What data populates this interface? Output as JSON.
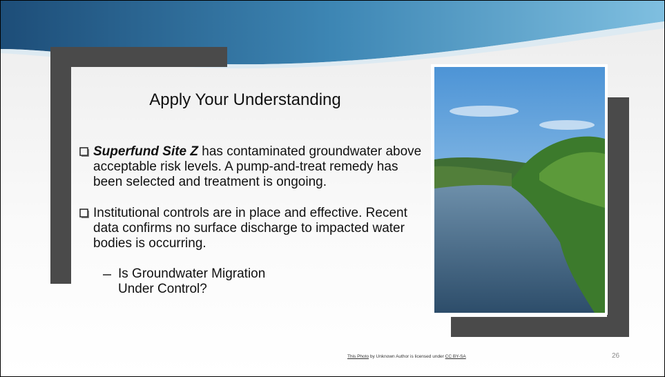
{
  "slide": {
    "title": "Apply Your Understanding",
    "bullets": [
      {
        "lead": "Superfund Site Z",
        "text": " has contaminated groundwater above acceptable risk levels. A pump-and-treat remedy has been selected and  treatment is ongoing."
      },
      {
        "text": "Institutional controls are in place and effective.  Recent data confirms no surface discharge to impacted water bodies is occurring."
      }
    ],
    "sub_bullet": "Is Groundwater Migration Under Control?",
    "attribution": {
      "link": "This Photo",
      "middle": " by Unknown Author is licensed under ",
      "license": "CC BY-SA"
    },
    "page_number": "26"
  }
}
